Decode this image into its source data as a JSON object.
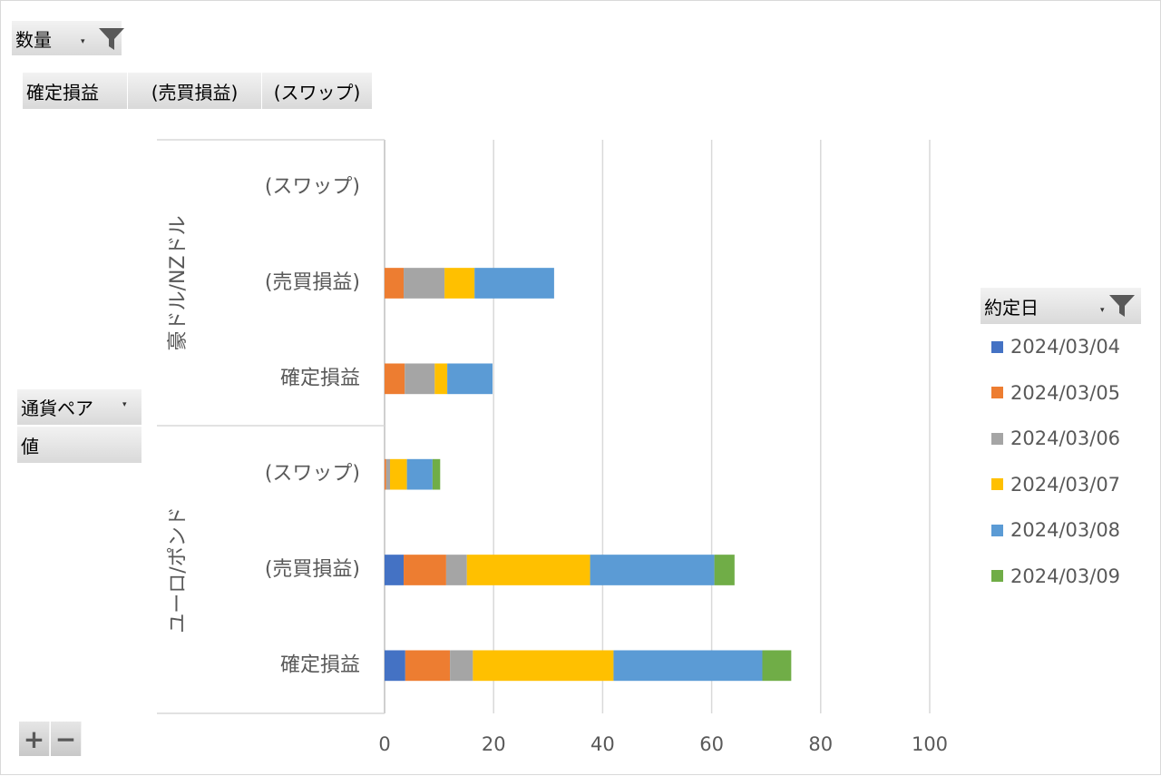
{
  "filter_field": {
    "label": "数量"
  },
  "value_fields": [
    "確定損益",
    "(売買損益)",
    "(スワップ)"
  ],
  "row_fields": {
    "label": "通貨ペア",
    "values_label": "値"
  },
  "legend_field": {
    "label": "約定日"
  },
  "zoom": {
    "plus": "+",
    "minus": "−"
  },
  "colors": {
    "2024/03/04": "#4472c4",
    "2024/03/05": "#ed7d31",
    "2024/03/06": "#a5a5a5",
    "2024/03/07": "#ffc000",
    "2024/03/08": "#5b9bd5",
    "2024/03/09": "#70ad47"
  },
  "chart_data": {
    "type": "bar",
    "orientation": "horizontal",
    "stacked": true,
    "title": "",
    "xlabel": "",
    "ylabel": "",
    "xlim": [
      0,
      100
    ],
    "xticks": [
      0,
      20,
      40,
      60,
      80,
      100
    ],
    "grid": true,
    "legend_position": "right",
    "groups": [
      {
        "name": "豪ドル/NZドル",
        "categories": [
          "(スワップ)",
          "(売買損益)",
          "確定損益"
        ]
      },
      {
        "name": "ユーロ/ポンド",
        "categories": [
          "(スワップ)",
          "(売買損益)",
          "確定損益"
        ]
      }
    ],
    "series": [
      {
        "name": "2024/03/04",
        "values": [
          0,
          0,
          0,
          0,
          3.5,
          3.8
        ]
      },
      {
        "name": "2024/03/05",
        "values": [
          0,
          3.5,
          3.7,
          0.3,
          7.8,
          8.2
        ]
      },
      {
        "name": "2024/03/06",
        "values": [
          0,
          7.5,
          5.5,
          0.7,
          3.8,
          4.2
        ]
      },
      {
        "name": "2024/03/07",
        "values": [
          0,
          5.5,
          2.3,
          3.1,
          22.6,
          25.8
        ]
      },
      {
        "name": "2024/03/08",
        "values": [
          0,
          14.6,
          8.3,
          4.7,
          22.8,
          27.3
        ]
      },
      {
        "name": "2024/03/09",
        "values": [
          0,
          0,
          0,
          1.4,
          3.7,
          5.3
        ]
      }
    ]
  }
}
